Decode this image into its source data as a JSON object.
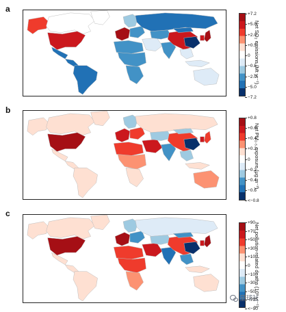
{
  "panels": [
    {
      "letter": "a",
      "colorbar": {
        "title": "Net SO₂ emissions (Mt yr⁻¹)",
        "ticks": [
          "+7.2",
          "+5.0",
          "+2.0",
          "+0.5",
          "0",
          "−0.5",
          "−2.0",
          "−5.0",
          "−7.2"
        ],
        "colors": [
          "#a50f15",
          "#cb181d",
          "#ef3b2c",
          "#fc9272",
          "#fee0d2",
          "#ffffff",
          "#deebf7",
          "#9ecae1",
          "#4292c6",
          "#2171b5",
          "#08306b"
        ]
      }
    },
    {
      "letter": "b",
      "colorbar": {
        "title": "Net PM₂.₅ exposure (μg m⁻³)",
        "ticks": [
          "+0.8",
          "+0.6",
          "+0.4",
          "+0.2",
          "0",
          "−0.2",
          "−0.4",
          "−0.6",
          "<−0.8"
        ],
        "colors": [
          "#a50f15",
          "#cb181d",
          "#ef3b2c",
          "#fc9272",
          "#fee0d2",
          "#ffffff",
          "#deebf7",
          "#9ecae1",
          "#4292c6",
          "#2171b5",
          "#08306b"
        ]
      }
    },
    {
      "letter": "c",
      "colorbar": {
        "title": "Net pollution-related deaths (10³ yr⁻¹)",
        "ticks": [
          "+90",
          "+70",
          "+50",
          "+30",
          "+10",
          "0",
          "−10",
          "−30",
          "−50",
          "−70",
          "<−90"
        ],
        "colors": [
          "#a50f15",
          "#cb181d",
          "#ef3b2c",
          "#fc9272",
          "#fee0d2",
          "#ffffff",
          "#deebf7",
          "#9ecae1",
          "#4292c6",
          "#2171b5",
          "#08306b"
        ]
      }
    }
  ],
  "regions_by_panel": {
    "a": {
      "alaska": "#ef3b2c",
      "canada": "#ffffff",
      "greenland": "#ffffff",
      "usa": "#cb181d",
      "mexico": "#2171b5",
      "central_america": "#2171b5",
      "south_america": "#2171b5",
      "western_europe": "#a50f15",
      "scandinavia": "#9ecae1",
      "eastern_europe": "#4292c6",
      "russia": "#2171b5",
      "north_africa": "#4292c6",
      "middle_east": "#deebf7",
      "sub_saharan_africa": "#4292c6",
      "southern_africa": "#4292c6",
      "central_asia": "#4292c6",
      "india": "#4292c6",
      "china": "#cb181d",
      "mongolia": "#2171b5",
      "east_china": "#08306b",
      "japan": "#a50f15",
      "korea": "#cb181d",
      "southeast_asia": "#deebf7",
      "indonesia": "#deebf7",
      "australia": "#deebf7",
      "greenland_top": "#ffffff"
    },
    "b": {
      "alaska": "#fee0d2",
      "canada": "#fee0d2",
      "greenland": "#fee0d2",
      "usa": "#a50f15",
      "mexico": "#fee0d2",
      "central_america": "#fee0d2",
      "south_america": "#fee0d2",
      "western_europe": "#cb181d",
      "scandinavia": "#9ecae1",
      "eastern_europe": "#ef3b2c",
      "russia": "#fee0d2",
      "north_africa": "#ef3b2c",
      "middle_east": "#cb181d",
      "sub_saharan_africa": "#fc9272",
      "southern_africa": "#fee0d2",
      "central_asia": "#9ecae1",
      "india": "#4292c6",
      "china": "#ef3b2c",
      "mongolia": "#9ecae1",
      "east_china": "#08306b",
      "japan": "#ef3b2c",
      "korea": "#cb181d",
      "southeast_asia": "#9ecae1",
      "indonesia": "#fee0d2",
      "australia": "#fc9272",
      "greenland_top": "#fee0d2"
    },
    "c": {
      "alaska": "#fee0d2",
      "canada": "#fee0d2",
      "greenland": "#fee0d2",
      "usa": "#a50f15",
      "mexico": "#fee0d2",
      "central_america": "#fee0d2",
      "south_america": "#fee0d2",
      "western_europe": "#a50f15",
      "scandinavia": "#9ecae1",
      "eastern_europe": "#4292c6",
      "russia": "#deebf7",
      "north_africa": "#ef3b2c",
      "middle_east": "#cb181d",
      "sub_saharan_africa": "#ef3b2c",
      "southern_africa": "#fc9272",
      "central_asia": "#9ecae1",
      "india": "#2171b5",
      "china": "#ef3b2c",
      "mongolia": "#4292c6",
      "east_china": "#08306b",
      "japan": "#a50f15",
      "korea": "#cb181d",
      "southeast_asia": "#4292c6",
      "indonesia": "#fee0d2",
      "australia": "#fee0d2",
      "greenland_top": "#fee0d2"
    }
  },
  "watermark": {
    "text": "星球社"
  }
}
